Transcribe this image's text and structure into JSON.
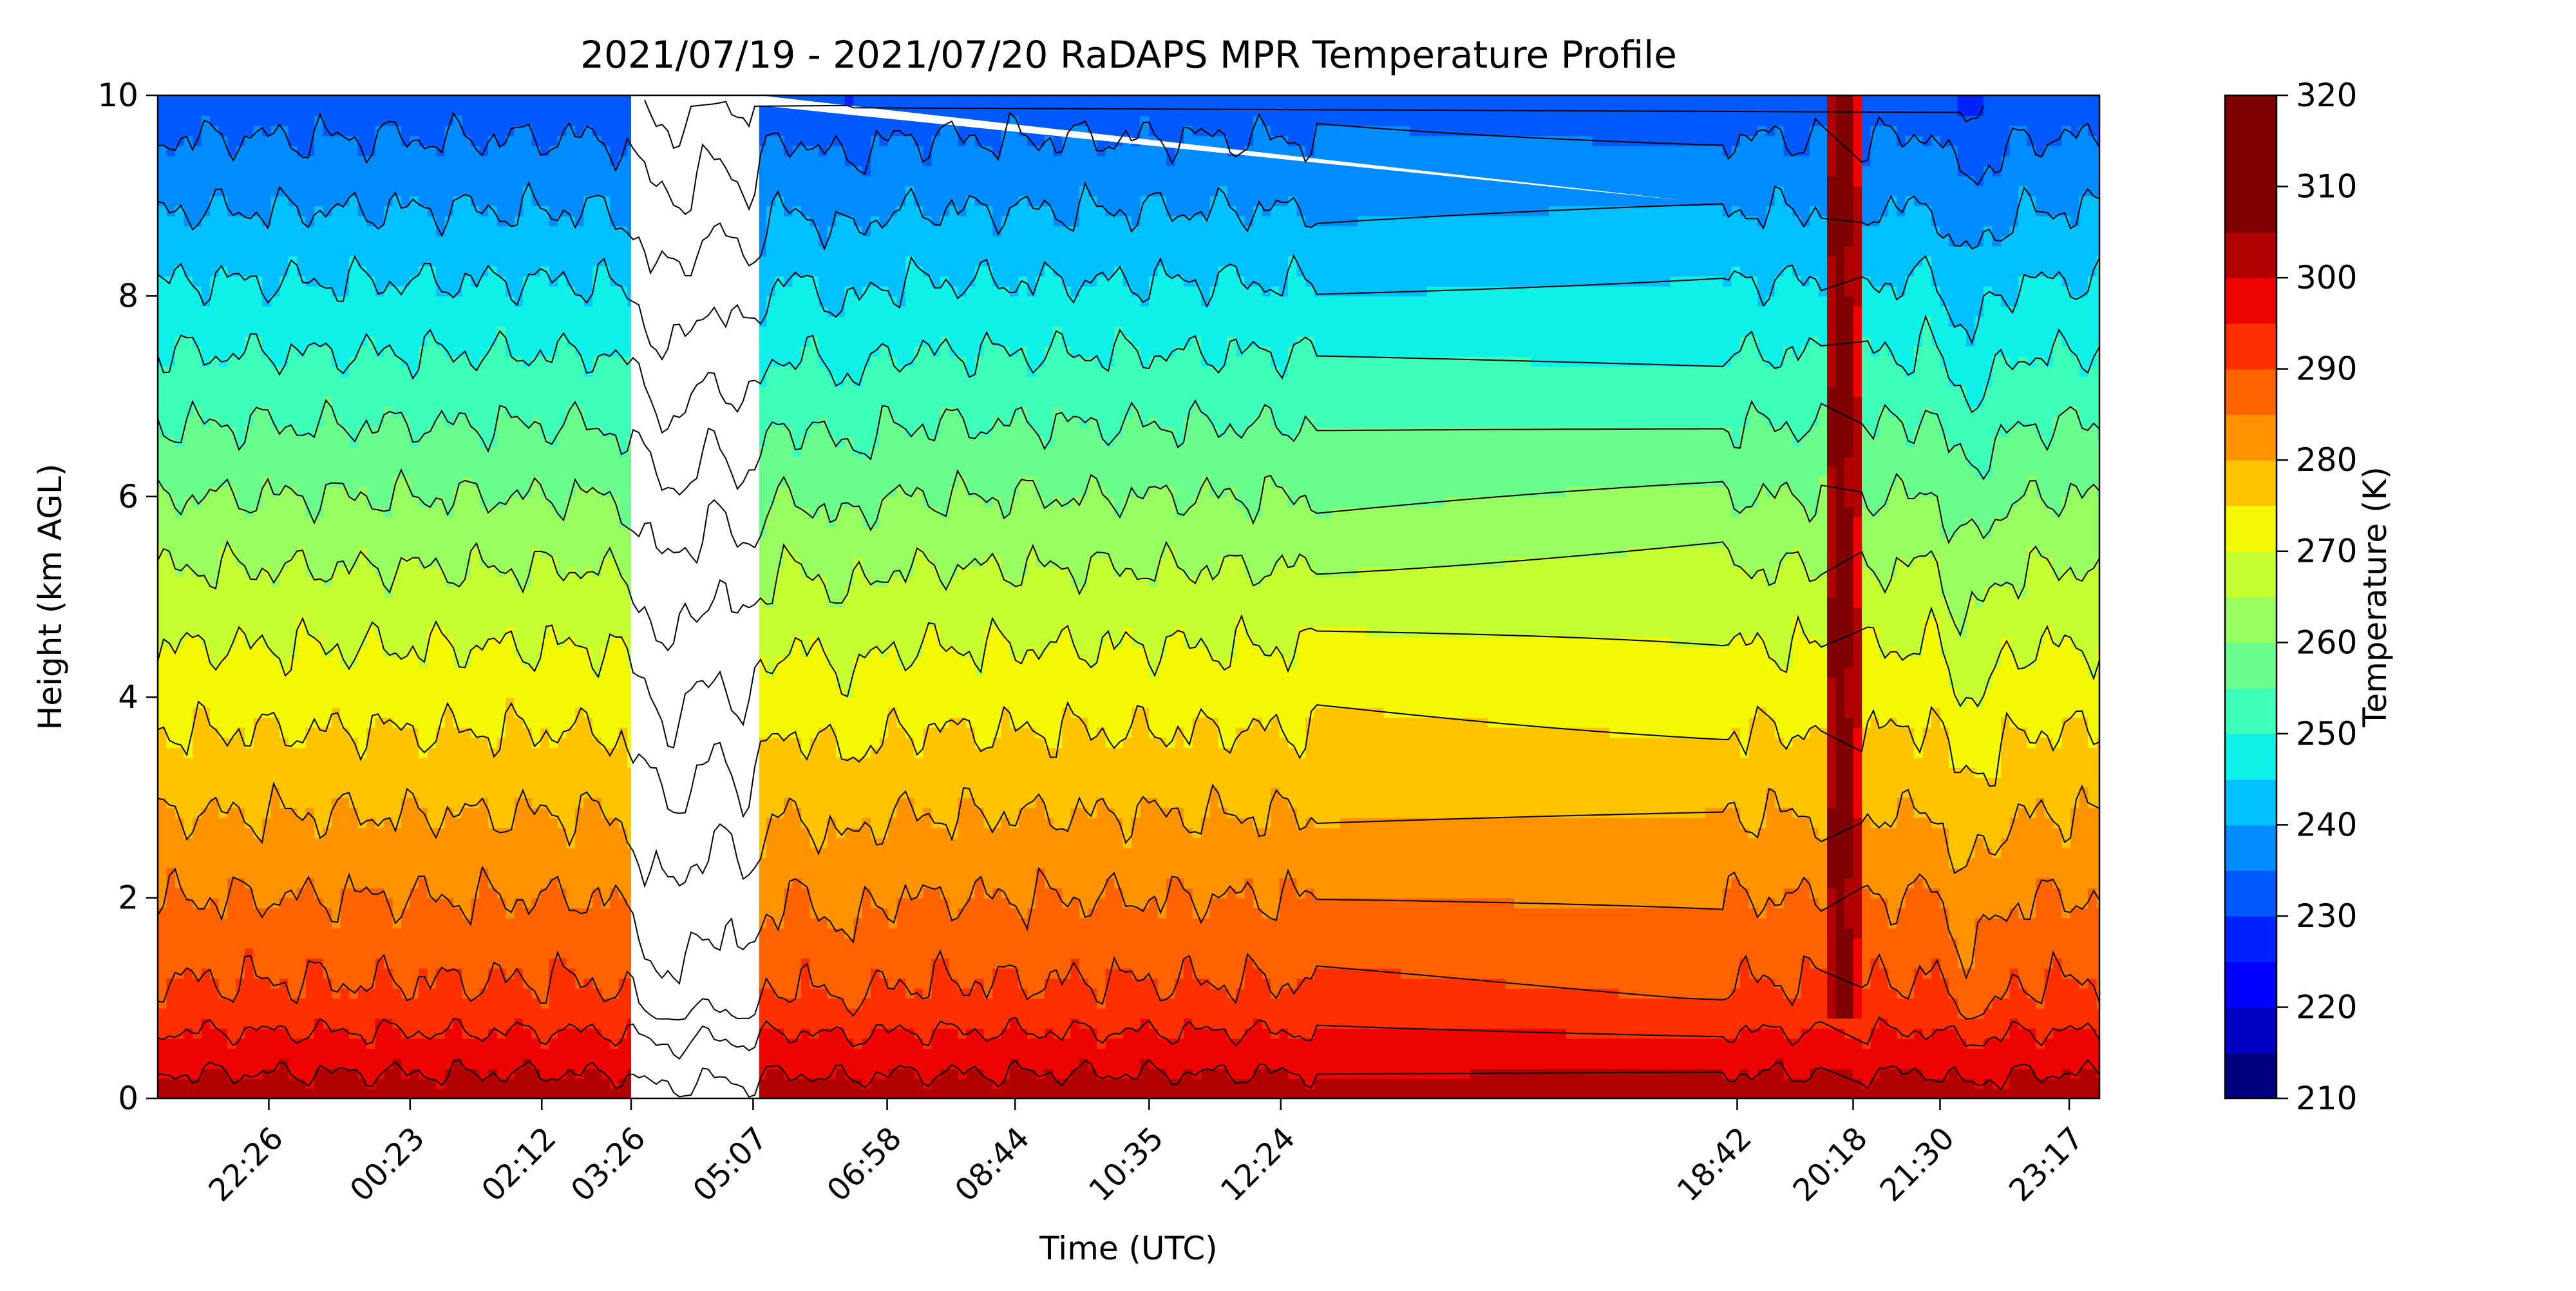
{
  "chart_data": {
    "type": "heatmap",
    "subtype": "filled-contour",
    "title": "2021/07/19 - 2021/07/20 RaDAPS MPR Temperature Profile",
    "xlabel": "Time (UTC)",
    "ylabel": "Height (km AGL)",
    "xlim_hours": [
      20.9,
      47.7
    ],
    "ylim": [
      0,
      10
    ],
    "x_ticks": [
      {
        "label": "22:26",
        "hour": 22.433
      },
      {
        "label": "00:23",
        "hour": 24.383
      },
      {
        "label": "02:12",
        "hour": 26.2
      },
      {
        "label": "03:26",
        "hour": 27.433
      },
      {
        "label": "05:07",
        "hour": 29.117
      },
      {
        "label": "06:58",
        "hour": 30.967
      },
      {
        "label": "08:44",
        "hour": 32.733
      },
      {
        "label": "10:35",
        "hour": 34.583
      },
      {
        "label": "12:24",
        "hour": 36.4
      },
      {
        "label": "18:42",
        "hour": 42.7
      },
      {
        "label": "20:18",
        "hour": 44.3
      },
      {
        "label": "21:30",
        "hour": 45.5
      },
      {
        "label": "23:17",
        "hour": 47.283
      }
    ],
    "y_ticks": [
      0,
      2,
      4,
      6,
      8,
      10
    ],
    "colorbar": {
      "label": "Temperature (K)",
      "min": 210,
      "max": 320,
      "step": 5,
      "tick_values": [
        210,
        220,
        230,
        240,
        250,
        260,
        270,
        280,
        290,
        300,
        310,
        320
      ],
      "colors": [
        "#00007f",
        "#0000c4",
        "#0000ff",
        "#0022ff",
        "#0058ff",
        "#008cff",
        "#00c0ff",
        "#0ff0e8",
        "#3dffba",
        "#6aff8d",
        "#98ff60",
        "#c5ff32",
        "#f4f802",
        "#ffc400",
        "#ff9400",
        "#ff6300",
        "#ff3000",
        "#ed0400",
        "#b10000",
        "#7f0000",
        "#7f0000",
        "#7f0000"
      ]
    },
    "temperature_by_height_reference": [
      {
        "height_km": 0.0,
        "temperature_K": 303
      },
      {
        "height_km": 1.0,
        "temperature_K": 291
      },
      {
        "height_km": 2.0,
        "temperature_K": 285
      },
      {
        "height_km": 3.0,
        "temperature_K": 279
      },
      {
        "height_km": 4.0,
        "temperature_K": 273
      },
      {
        "height_km": 5.0,
        "temperature_K": 267
      },
      {
        "height_km": 6.0,
        "temperature_K": 260
      },
      {
        "height_km": 7.0,
        "temperature_K": 253
      },
      {
        "height_km": 8.0,
        "temperature_K": 246
      },
      {
        "height_km": 9.0,
        "temperature_K": 239
      },
      {
        "height_km": 10.0,
        "temperature_K": 232
      }
    ],
    "data_gap": {
      "from_hour": 27.433,
      "to_hour": 29.2,
      "note_visible": false
    }
  }
}
